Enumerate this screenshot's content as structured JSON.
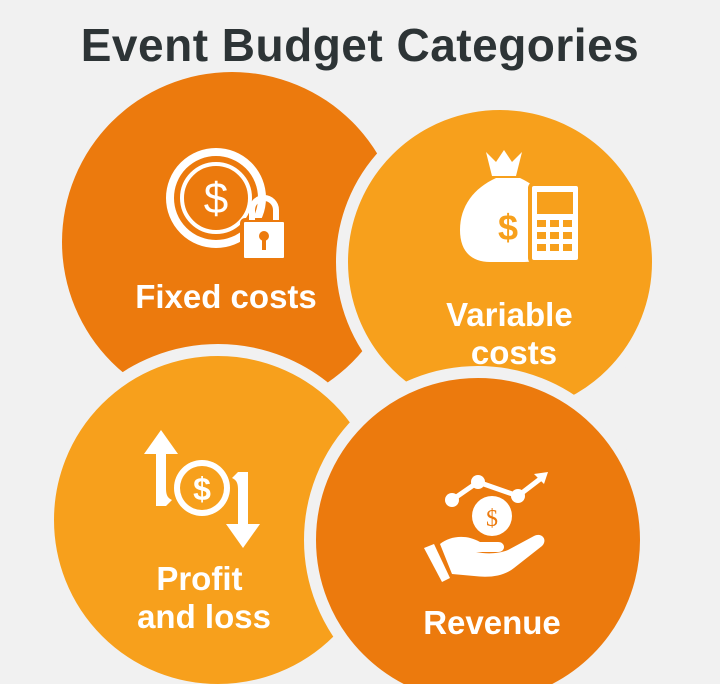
{
  "title": "Event Budget Categories",
  "colors": {
    "background": "#f1f1f1",
    "dark_orange": "#ec7a0d",
    "light_orange": "#f7a01c",
    "text_title": "#2d3436",
    "text_label": "#ffffff"
  },
  "categories": [
    {
      "label_lines": [
        "Fixed costs"
      ],
      "icon": "dollar-lock-icon"
    },
    {
      "label_lines": [
        "Variable",
        "costs"
      ],
      "icon": "moneybag-calculator-icon"
    },
    {
      "label_lines": [
        "Profit",
        "and loss"
      ],
      "icon": "dollar-up-down-arrows-icon"
    },
    {
      "label_lines": [
        "Revenue"
      ],
      "icon": "hand-coin-growth-icon"
    }
  ]
}
